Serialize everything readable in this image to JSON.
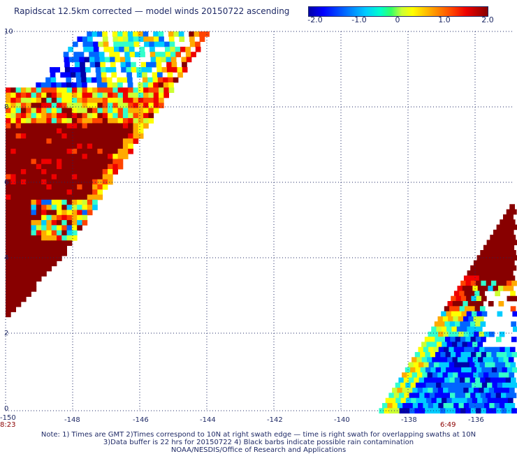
{
  "title": "Rapidscat 12.5km corrected — model winds 20150722 ascending",
  "colorbar": {
    "ticks": [
      "-2.0",
      "-1.0",
      "0",
      "1.0",
      "2.0"
    ],
    "range": [
      -2.0,
      2.0
    ],
    "colors": [
      "#0000aa",
      "#0000ff",
      "#00ccff",
      "#ffff00",
      "#ff4400",
      "#880000"
    ]
  },
  "axes": {
    "x_ticks": [
      "-150",
      "-148",
      "-146",
      "-144",
      "-142",
      "-140",
      "-138",
      "-136"
    ],
    "y_ticks": [
      "0",
      "2",
      "4",
      "6",
      "8",
      "10"
    ],
    "grid": true
  },
  "swath_times": {
    "left": "8:23",
    "right": "6:49"
  },
  "notes": {
    "line1": "Note: 1) Times are GMT 2)Times correspond to 10N at right swath edge — time is right swath for overlapping swaths at 10N",
    "line2": "3)Data buffer is 22 hrs for 20150722 4) Black barbs indicate possible rain contamination",
    "line3": "NOAA/NESDIS/Office of Research and Applications"
  }
}
